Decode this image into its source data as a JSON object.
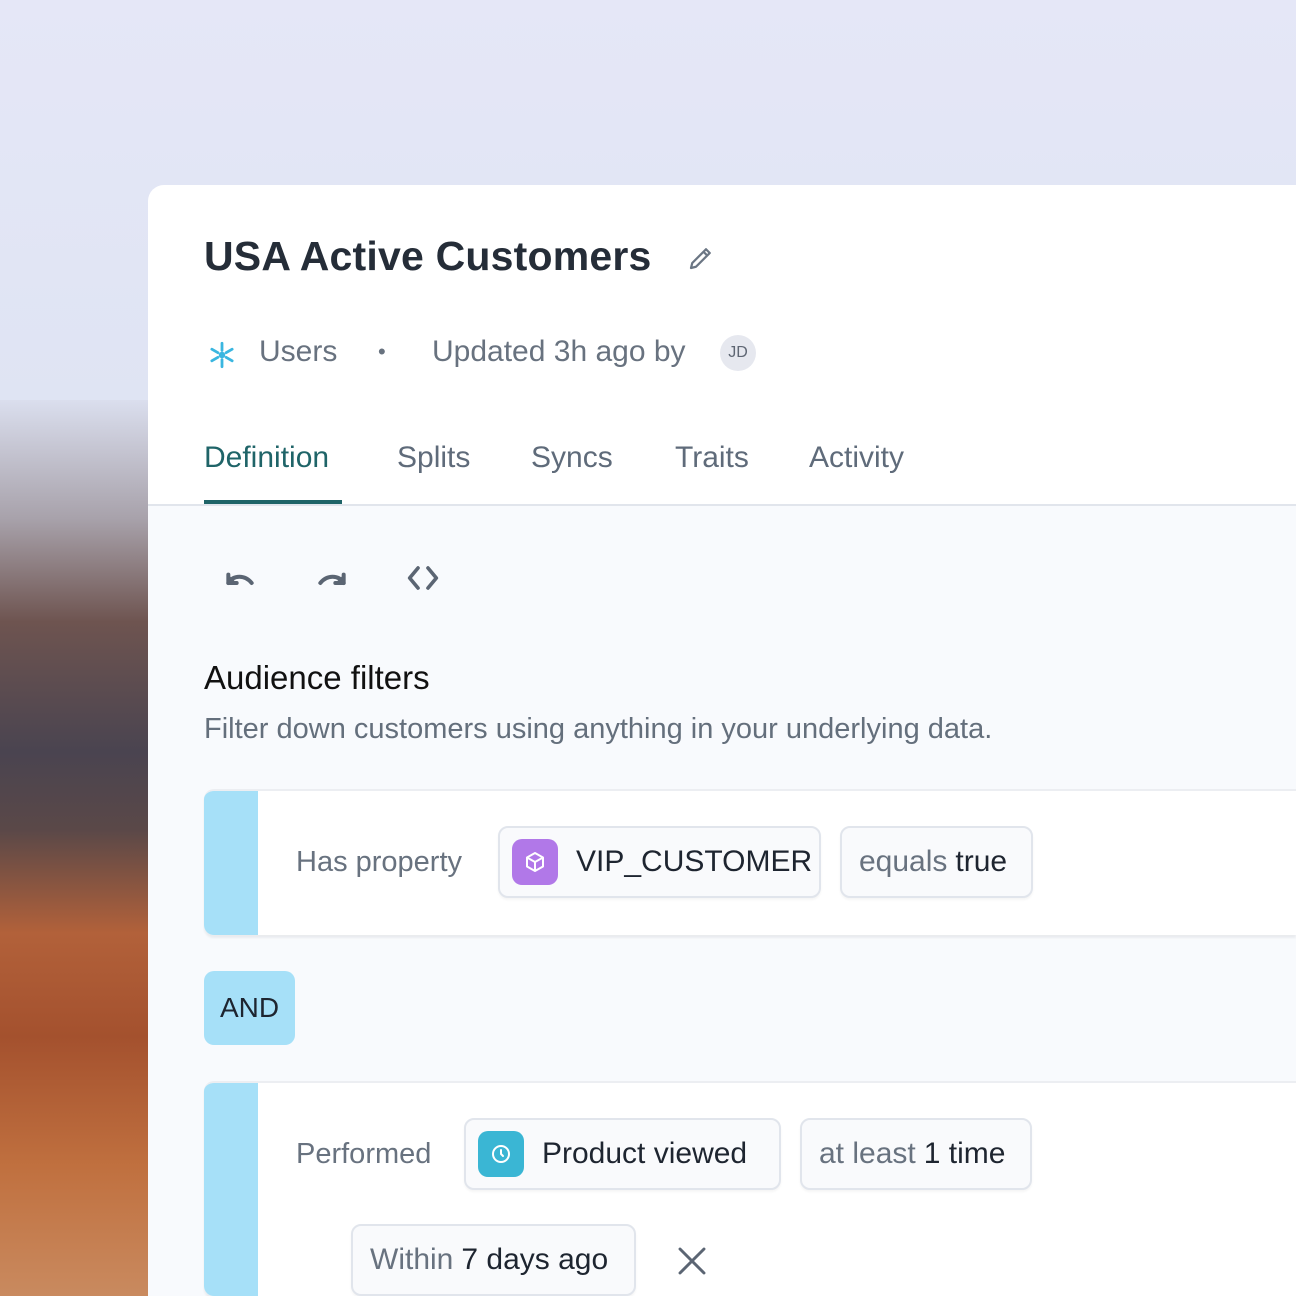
{
  "header": {
    "title": "USA Active Customers",
    "source": "Users",
    "separator": "•",
    "updated": "Updated 3h ago by",
    "avatar_initials": "JD"
  },
  "tabs": [
    {
      "label": "Definition",
      "active": true
    },
    {
      "label": "Splits"
    },
    {
      "label": "Syncs"
    },
    {
      "label": "Traits"
    },
    {
      "label": "Activity"
    }
  ],
  "toolbar": {
    "icons": [
      "undo-icon",
      "redo-icon",
      "code-icon"
    ]
  },
  "filters": {
    "title": "Audience filters",
    "subtitle": "Filter down customers using anything in your underlying data.",
    "conditions": [
      {
        "label": "Has property",
        "field": "VIP_CUSTOMER",
        "field_icon": "cube-icon",
        "field_icon_color": "#b178e8",
        "op_muted": "equals",
        "op_value": "true"
      },
      {
        "label": "Performed",
        "field": "Product viewed",
        "field_icon": "clock-icon",
        "field_icon_color": "#3ab6d4",
        "op_muted": "at least",
        "op_value": "1 time",
        "window_muted": "Within",
        "window_value": "7 days ago"
      }
    ],
    "conjunction": "AND"
  },
  "colors": {
    "accent": "#1f6468",
    "filter_bar": "#a6e0f8",
    "snowflake": "#3ab6e0"
  }
}
